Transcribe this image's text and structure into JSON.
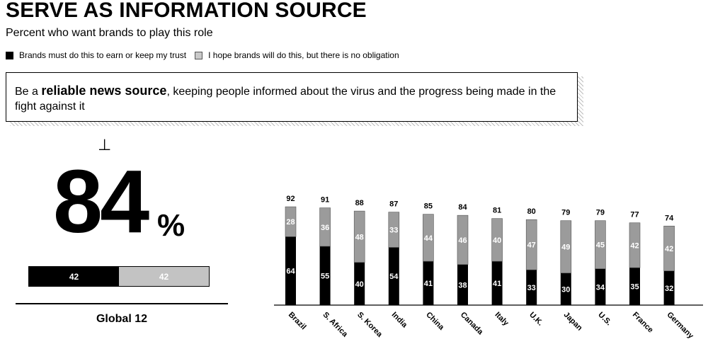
{
  "title": "SERVE AS INFORMATION SOURCE",
  "subtitle": "Percent who want brands to play this role",
  "legend": {
    "must": "Brands must do this to earn or keep my trust",
    "hope": "I hope brands will do this, but there is no obligation"
  },
  "statement": {
    "pre": "Be a ",
    "bold": "reliable news source",
    "post": ", keeping people informed about the virus and the progress being made in the fight against it"
  },
  "global": {
    "symbol": "⊥",
    "total": "84",
    "pct_sign": "%",
    "must": "42",
    "hope": "42",
    "must_value": 42,
    "hope_value": 42,
    "label": "Global 12"
  },
  "colors": {
    "must": "#000000",
    "hope": "#9b9b9b",
    "hope_light": "#c3c3c3"
  },
  "chart_data": {
    "type": "bar",
    "stacked": true,
    "categories": [
      "Brazil",
      "S. Africa",
      "S. Korea",
      "India",
      "China",
      "Canada",
      "Italy",
      "U.K.",
      "Japan",
      "U.S.",
      "France",
      "Germany"
    ],
    "series": [
      {
        "name": "Brands must do this to earn or keep my trust",
        "values": [
          64,
          55,
          40,
          54,
          41,
          38,
          41,
          33,
          30,
          34,
          35,
          32
        ]
      },
      {
        "name": "I hope brands will do this, but there is no obligation",
        "values": [
          28,
          36,
          48,
          33,
          44,
          46,
          40,
          47,
          49,
          45,
          42,
          42
        ]
      }
    ],
    "totals": [
      92,
      91,
      88,
      87,
      85,
      84,
      81,
      80,
      79,
      79,
      77,
      74
    ],
    "ylim": [
      0,
      100
    ]
  }
}
